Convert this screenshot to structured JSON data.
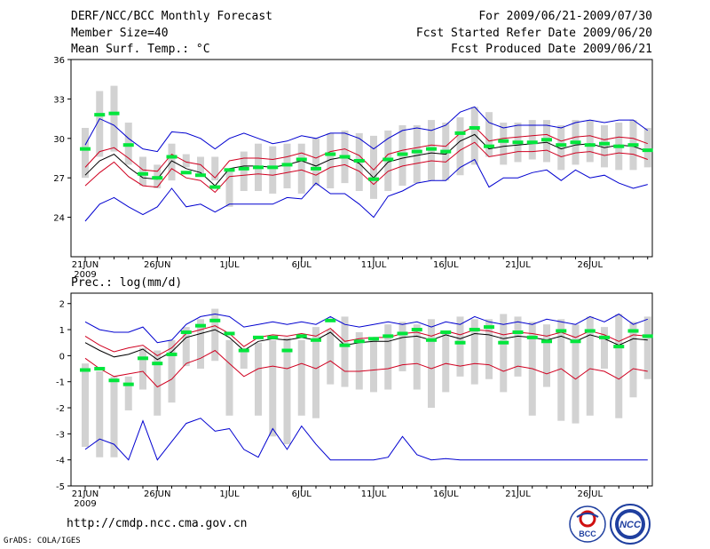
{
  "header": {
    "title": "DERF/NCC/BCC Monthly Forecast",
    "member_size": "Member Size=40",
    "variable": "Mean Surf. Temp.: °C",
    "period": "For 2009/06/21-2009/07/30",
    "start_date": "Fcst Started Refer Date 2009/06/20",
    "produced_date": "Fcst Produced Date 2009/06/21"
  },
  "footer": {
    "url": "http://cmdp.ncc.cma.gov.cn",
    "credit": "GrADS: COLA/IGES",
    "logo_bcc_text": "BCC",
    "logo_ncc_text": "NCC"
  },
  "colors": {
    "box": "#d2d2d2",
    "median": "#00e63c",
    "outer": "#0000d0",
    "inner": "#d00020",
    "mean": "#000000"
  },
  "chart_data": [
    {
      "type": "line",
      "title": "Mean Surf. Temp.: °C",
      "xlabel": "",
      "ylabel": "",
      "ylim": [
        21,
        36
      ],
      "yticks": [
        "24",
        "27",
        "30",
        "33",
        "36"
      ],
      "xticks": [
        {
          "day": 1,
          "label": "21JUN"
        },
        {
          "day": 6,
          "label": "26JUN"
        },
        {
          "day": 11,
          "label": "1JUL"
        },
        {
          "day": 16,
          "label": "6JUL"
        },
        {
          "day": 21,
          "label": "11JUL"
        },
        {
          "day": 26,
          "label": "16JUL"
        },
        {
          "day": 31,
          "label": "21JUL"
        },
        {
          "day": 36,
          "label": "26JUL"
        }
      ],
      "year_label": "2009",
      "n_days": 40,
      "box_low": [
        27.0,
        28.6,
        29.0,
        28.0,
        26.4,
        26.2,
        26.8,
        27.8,
        27.2,
        26.8,
        24.8,
        26.0,
        26.0,
        25.8,
        26.2,
        25.8,
        26.4,
        26.2,
        26.6,
        26.0,
        25.4,
        26.0,
        26.4,
        26.6,
        26.8,
        26.8,
        27.2,
        28.0,
        28.6,
        28.0,
        28.2,
        28.4,
        28.2,
        27.6,
        28.0,
        28.2,
        27.8,
        27.6,
        27.6,
        27.8
      ],
      "box_high": [
        30.8,
        33.6,
        34.0,
        31.2,
        28.6,
        28.0,
        29.6,
        28.8,
        28.6,
        28.6,
        27.6,
        29.0,
        29.6,
        29.4,
        29.6,
        29.6,
        30.0,
        30.4,
        30.6,
        30.4,
        30.2,
        30.6,
        31.0,
        31.0,
        31.4,
        31.2,
        31.6,
        32.4,
        32.0,
        31.2,
        31.2,
        31.4,
        31.4,
        31.0,
        31.4,
        31.4,
        31.0,
        31.2,
        31.4,
        30.8
      ],
      "median": [
        29.2,
        31.8,
        31.9,
        29.5,
        27.3,
        27.0,
        28.6,
        27.4,
        27.2,
        26.3,
        27.6,
        27.7,
        27.8,
        27.8,
        28.0,
        28.4,
        27.7,
        28.8,
        28.6,
        28.3,
        26.9,
        28.4,
        28.8,
        29.0,
        29.2,
        29.0,
        30.4,
        30.8,
        29.4,
        29.8,
        29.7,
        29.7,
        29.9,
        29.5,
        29.7,
        29.5,
        29.6,
        29.4,
        29.5,
        29.1
      ],
      "series": [
        {
          "name": "max",
          "role": "outer",
          "values": [
            29.5,
            31.5,
            31.0,
            30.0,
            29.2,
            29.0,
            30.5,
            30.4,
            30.0,
            29.2,
            30.0,
            30.4,
            30.0,
            29.6,
            29.8,
            30.2,
            30.0,
            30.4,
            30.4,
            30.0,
            29.2,
            30.0,
            30.6,
            30.8,
            30.6,
            31.0,
            32.0,
            32.4,
            31.2,
            30.8,
            31.0,
            31.0,
            31.0,
            30.8,
            31.2,
            31.4,
            31.2,
            31.4,
            31.4,
            30.6
          ]
        },
        {
          "name": "upper",
          "role": "inner",
          "values": [
            27.8,
            29.0,
            29.3,
            28.5,
            27.6,
            27.5,
            28.8,
            28.2,
            28.0,
            27.0,
            28.3,
            28.5,
            28.5,
            28.4,
            28.6,
            28.9,
            28.5,
            29.0,
            29.2,
            28.7,
            27.6,
            28.8,
            29.1,
            29.3,
            29.5,
            29.4,
            30.4,
            30.9,
            29.8,
            30.0,
            30.1,
            30.2,
            30.3,
            29.8,
            30.1,
            30.2,
            29.9,
            30.1,
            30.0,
            29.6
          ]
        },
        {
          "name": "mean",
          "role": "mean",
          "values": [
            27.2,
            28.3,
            28.8,
            27.8,
            27.0,
            26.9,
            28.3,
            27.7,
            27.4,
            26.4,
            27.7,
            27.9,
            27.9,
            27.8,
            28.0,
            28.3,
            27.9,
            28.4,
            28.6,
            28.1,
            27.0,
            28.2,
            28.5,
            28.7,
            28.9,
            28.8,
            29.8,
            30.3,
            29.2,
            29.4,
            29.5,
            29.6,
            29.7,
            29.2,
            29.5,
            29.6,
            29.3,
            29.5,
            29.4,
            29.0
          ]
        },
        {
          "name": "lower",
          "role": "inner",
          "values": [
            26.4,
            27.4,
            28.2,
            27.1,
            26.4,
            26.3,
            27.7,
            27.0,
            26.8,
            25.9,
            27.1,
            27.2,
            27.3,
            27.2,
            27.4,
            27.6,
            27.2,
            27.8,
            28.0,
            27.5,
            26.5,
            27.5,
            27.9,
            28.1,
            28.3,
            28.2,
            29.1,
            29.7,
            28.6,
            28.8,
            29.0,
            29.0,
            29.1,
            28.6,
            28.9,
            29.0,
            28.7,
            28.9,
            28.8,
            28.4
          ]
        },
        {
          "name": "min",
          "role": "outer",
          "values": [
            23.7,
            25.0,
            25.5,
            24.8,
            24.2,
            24.8,
            26.2,
            24.8,
            25.0,
            24.4,
            25.0,
            25.0,
            25.0,
            25.0,
            25.5,
            25.4,
            26.6,
            25.8,
            25.8,
            25.0,
            24.0,
            25.6,
            26.0,
            26.6,
            26.8,
            26.8,
            27.8,
            28.4,
            26.3,
            27.0,
            27.0,
            27.4,
            27.6,
            26.8,
            27.6,
            27.0,
            27.2,
            26.6,
            26.2,
            26.5
          ]
        }
      ]
    },
    {
      "type": "line",
      "title": "Prec.: log(mm/d)",
      "xlabel": "",
      "ylabel": "",
      "ylim": [
        -5,
        2.4
      ],
      "yticks": [
        "-5",
        "-4",
        "-3",
        "-2",
        "-1",
        "0",
        "1",
        "2"
      ],
      "xticks": [
        {
          "day": 1,
          "label": "21JUN"
        },
        {
          "day": 6,
          "label": "26JUN"
        },
        {
          "day": 11,
          "label": "1JUL"
        },
        {
          "day": 16,
          "label": "6JUL"
        },
        {
          "day": 21,
          "label": "11JUL"
        },
        {
          "day": 26,
          "label": "16JUL"
        },
        {
          "day": 31,
          "label": "21JUL"
        },
        {
          "day": 36,
          "label": "26JUL"
        }
      ],
      "year_label": "2009",
      "n_days": 40,
      "box_low": [
        -3.5,
        -3.9,
        -3.9,
        -2.1,
        -1.3,
        -2.3,
        -1.8,
        -0.4,
        -0.5,
        -0.2,
        -2.3,
        -0.5,
        -2.3,
        -3.1,
        -3.4,
        -2.3,
        -2.4,
        -1.1,
        -1.2,
        -1.3,
        -1.4,
        -1.3,
        -0.6,
        -1.3,
        -2.0,
        -1.4,
        -0.8,
        -1.1,
        -0.9,
        -1.4,
        -0.8,
        -2.3,
        -1.2,
        -2.5,
        -2.6,
        -2.3,
        -0.5,
        -2.4,
        -1.6,
        -0.9
      ],
      "box_high": [
        -0.3,
        -0.6,
        -0.8,
        -0.8,
        0.3,
        0.2,
        0.6,
        1.1,
        1.4,
        1.8,
        0.6,
        0.3,
        0.5,
        0.6,
        0.7,
        0.6,
        1.1,
        1.0,
        1.5,
        0.9,
        0.6,
        1.2,
        1.3,
        1.2,
        1.4,
        0.9,
        1.5,
        1.4,
        1.4,
        1.6,
        1.5,
        1.3,
        1.2,
        1.4,
        1.2,
        1.5,
        1.1,
        1.6,
        1.3,
        1.5
      ],
      "median": [
        -0.55,
        -0.5,
        -0.95,
        -1.1,
        -0.1,
        -0.3,
        0.05,
        0.9,
        1.15,
        1.35,
        0.85,
        0.2,
        0.7,
        0.7,
        0.2,
        0.75,
        0.6,
        1.35,
        0.4,
        0.55,
        0.65,
        0.75,
        0.85,
        1.0,
        0.6,
        0.9,
        0.5,
        1.0,
        1.1,
        0.5,
        0.9,
        0.7,
        0.55,
        0.95,
        0.55,
        0.95,
        0.7,
        0.35,
        0.95,
        0.75
      ],
      "series": [
        {
          "name": "max",
          "role": "outer",
          "values": [
            1.3,
            1.0,
            0.9,
            0.9,
            1.1,
            0.5,
            0.6,
            1.2,
            1.5,
            1.6,
            1.5,
            1.1,
            1.2,
            1.3,
            1.2,
            1.3,
            1.2,
            1.5,
            1.2,
            1.1,
            1.2,
            1.3,
            1.2,
            1.3,
            1.1,
            1.3,
            1.2,
            1.5,
            1.3,
            1.2,
            1.3,
            1.2,
            1.4,
            1.3,
            1.2,
            1.5,
            1.3,
            1.6,
            1.2,
            1.4
          ]
        },
        {
          "name": "upper",
          "role": "inner",
          "values": [
            0.75,
            0.4,
            0.15,
            0.3,
            0.4,
            0.0,
            0.3,
            0.85,
            1.0,
            1.15,
            0.85,
            0.35,
            0.7,
            0.8,
            0.75,
            0.85,
            0.75,
            1.05,
            0.55,
            0.65,
            0.7,
            0.7,
            0.85,
            0.9,
            0.75,
            0.95,
            0.8,
            1.0,
            0.95,
            0.8,
            0.9,
            0.85,
            0.75,
            0.9,
            0.7,
            0.95,
            0.8,
            0.55,
            0.8,
            0.75
          ]
        },
        {
          "name": "mean",
          "role": "mean",
          "values": [
            0.5,
            0.2,
            -0.05,
            0.05,
            0.25,
            -0.15,
            0.15,
            0.7,
            0.85,
            1.0,
            0.7,
            0.2,
            0.55,
            0.65,
            0.6,
            0.7,
            0.6,
            0.9,
            0.4,
            0.5,
            0.55,
            0.55,
            0.7,
            0.75,
            0.6,
            0.8,
            0.65,
            0.85,
            0.8,
            0.65,
            0.75,
            0.7,
            0.6,
            0.75,
            0.55,
            0.8,
            0.65,
            0.4,
            0.65,
            0.6
          ]
        },
        {
          "name": "lower",
          "role": "inner",
          "values": [
            -0.1,
            -0.5,
            -0.8,
            -0.7,
            -0.6,
            -1.2,
            -0.9,
            -0.3,
            -0.1,
            0.2,
            -0.3,
            -0.8,
            -0.5,
            -0.4,
            -0.5,
            -0.3,
            -0.5,
            -0.2,
            -0.6,
            -0.6,
            -0.55,
            -0.5,
            -0.35,
            -0.3,
            -0.5,
            -0.3,
            -0.4,
            -0.3,
            -0.35,
            -0.6,
            -0.4,
            -0.5,
            -0.7,
            -0.5,
            -0.9,
            -0.5,
            -0.6,
            -0.9,
            -0.5,
            -0.6
          ]
        },
        {
          "name": "min",
          "role": "outer",
          "values": [
            -3.6,
            -3.2,
            -3.4,
            -4.0,
            -2.5,
            -4.0,
            -3.3,
            -2.6,
            -2.4,
            -2.9,
            -2.8,
            -3.6,
            -3.9,
            -2.8,
            -3.6,
            -2.7,
            -3.4,
            -4.0,
            -4.0,
            -4.0,
            -4.0,
            -3.9,
            -3.1,
            -3.8,
            -4.0,
            -3.95,
            -4.0,
            -4.0,
            -4.0,
            -4.0,
            -4.0,
            -4.0,
            -4.0,
            -4.0,
            -4.0,
            -4.0,
            -4.0,
            -4.0,
            -4.0,
            -4.0
          ]
        }
      ]
    }
  ]
}
